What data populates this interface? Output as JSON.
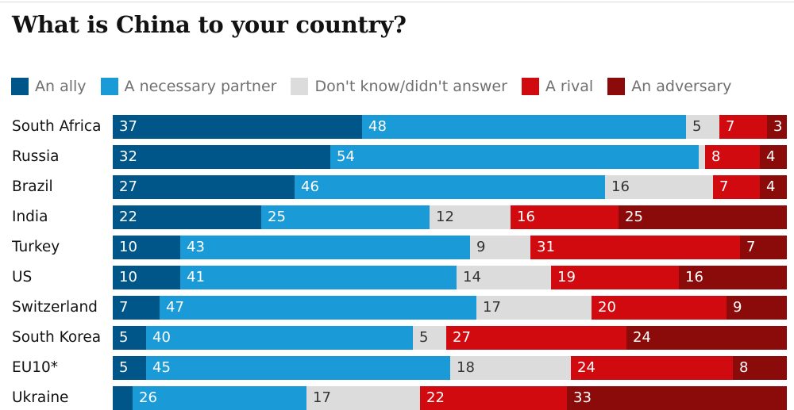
{
  "chart_data": {
    "type": "bar",
    "orientation": "horizontal",
    "stacked": true,
    "title": "What is China to your country?",
    "xlim": [
      0,
      100
    ],
    "legend_position": "top",
    "categories": [
      "South Africa",
      "Russia",
      "Brazil",
      "India",
      "Turkey",
      "US",
      "Switzerland",
      "South Korea",
      "EU10*",
      "Ukraine"
    ],
    "series": [
      {
        "name": "An ally",
        "color": "#005689",
        "values": [
          37,
          32,
          27,
          22,
          10,
          10,
          7,
          5,
          5,
          3
        ],
        "labels": [
          "37",
          "32",
          "27",
          "22",
          "10",
          "10",
          "7",
          "5",
          "5",
          ""
        ]
      },
      {
        "name": "A necessary partner",
        "color": "#1a9ad6",
        "values": [
          48,
          54,
          46,
          25,
          43,
          41,
          47,
          40,
          45,
          26
        ],
        "labels": [
          "48",
          "54",
          "46",
          "25",
          "43",
          "41",
          "47",
          "40",
          "45",
          "26"
        ]
      },
      {
        "name": "Don't know/didn't answer",
        "color": "#dcdcdc",
        "values": [
          5,
          1,
          16,
          12,
          9,
          14,
          17,
          5,
          18,
          17
        ],
        "labels": [
          "5",
          "",
          "16",
          "12",
          "9",
          "14",
          "17",
          "5",
          "18",
          "17"
        ]
      },
      {
        "name": "A rival",
        "color": "#d10a10",
        "values": [
          7,
          8,
          7,
          16,
          31,
          19,
          20,
          27,
          24,
          22
        ],
        "labels": [
          "7",
          "8",
          "7",
          "16",
          "31",
          "19",
          "20",
          "27",
          "24",
          "22"
        ]
      },
      {
        "name": "An adversary",
        "color": "#8b0a0a",
        "values": [
          3,
          4,
          4,
          25,
          7,
          16,
          9,
          24,
          8,
          33
        ],
        "labels": [
          "3",
          "4",
          "4",
          "25",
          "7",
          "16",
          "9",
          "24",
          "8",
          "33"
        ]
      }
    ]
  }
}
